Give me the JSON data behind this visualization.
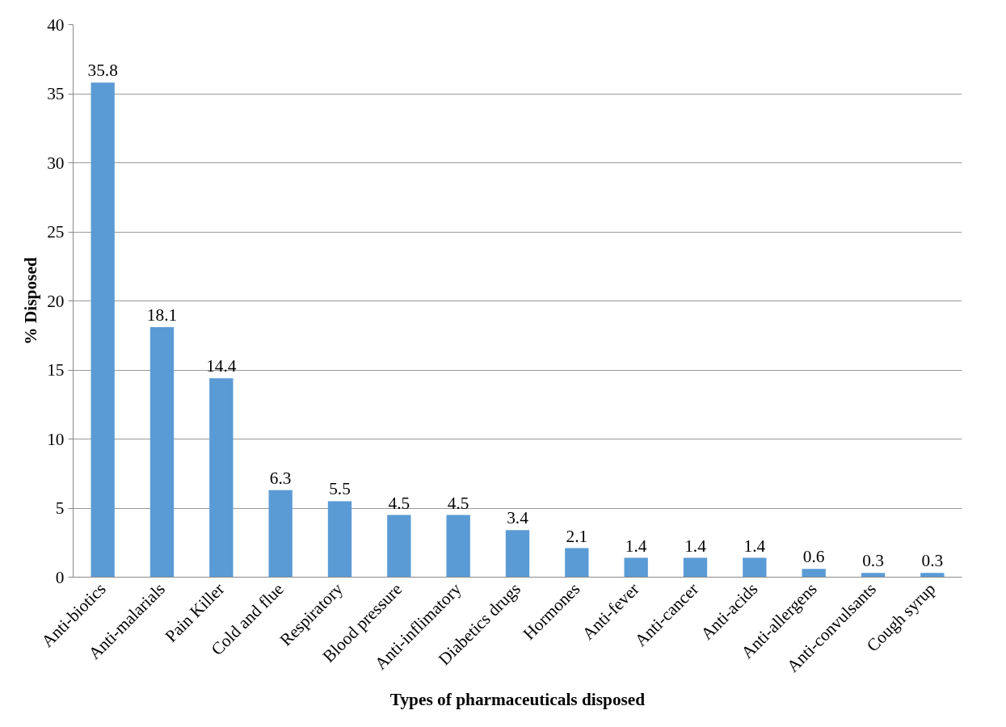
{
  "chart_data": {
    "type": "bar",
    "xlabel": "Types of pharmaceuticals disposed",
    "ylabel": "% Disposed",
    "categories": [
      "Anti-biotics",
      "Anti-malarials",
      "Pain Killer",
      "Cold and flue",
      "Respiratory",
      "Blood pressure",
      "Anti-inflimatory",
      "Diabetics drugs",
      "Hormones",
      "Anti-fever",
      "Anti-cancer",
      "Anti-acids",
      "Anti-allergens",
      "Anti-convulsants",
      "Cough syrup"
    ],
    "values": [
      35.8,
      18.1,
      14.4,
      6.3,
      5.5,
      4.5,
      4.5,
      3.4,
      2.1,
      1.4,
      1.4,
      1.4,
      0.6,
      0.3,
      0.3
    ],
    "color": "#5b9bd5",
    "ylim": [
      0,
      40
    ],
    "yticks": [
      0,
      5,
      10,
      15,
      20,
      25,
      30,
      35,
      40
    ],
    "grid": "y",
    "data_labels": true
  }
}
